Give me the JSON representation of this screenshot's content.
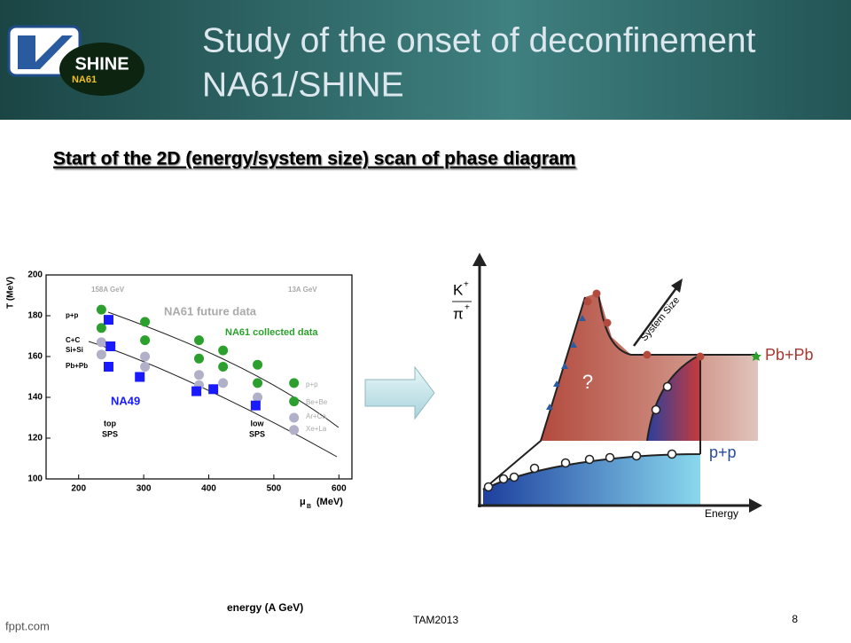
{
  "header": {
    "title_line1": "Study of the onset of deconfinement",
    "title_line2": "NA61/SHINE",
    "logo_text": "SHINE",
    "logo_subtext": "NA61"
  },
  "subtitle": "Start of the 2D (energy/system size) scan of phase diagram",
  "left_plot": {
    "y_label": "T (MeV)",
    "x_label_mu": "μ",
    "x_label_sub": "B",
    "x_label_unit": "(MeV)",
    "xlim": [
      150,
      620
    ],
    "ylim": [
      100,
      200
    ],
    "xticks": [
      200,
      300,
      400,
      500,
      600
    ],
    "yticks": [
      100,
      120,
      140,
      160,
      180,
      200
    ],
    "top_energy": "158A GeV",
    "low_energy": "13A GeV",
    "future_label": "NA61 future data",
    "collected_label": "NA61 collected data",
    "na49_label": "NA49",
    "top_sps": [
      "top",
      "SPS"
    ],
    "low_sps": [
      "low",
      "SPS"
    ],
    "system_labels": [
      "p+p",
      "C+C",
      "Si+Si",
      "Pb+Pb"
    ],
    "legend": [
      "p+p",
      "Be+Be",
      "Ar+Ca",
      "Xe+La"
    ],
    "na49": {
      "color": "#1a1aff",
      "x": [
        246,
        249,
        246,
        294,
        381,
        407,
        472
      ],
      "y": [
        178,
        165,
        155,
        150,
        143,
        144,
        136
      ]
    },
    "collected": {
      "color": "#2ca02c",
      "x": [
        235,
        235,
        302,
        302,
        385,
        422,
        475,
        385,
        422,
        475,
        531,
        531
      ],
      "y": [
        183,
        174,
        177,
        168,
        168,
        163,
        156,
        159,
        155,
        147,
        147,
        138
      ]
    },
    "future": {
      "color": "#b0b0c8",
      "x": [
        235,
        235,
        302,
        302,
        385,
        422,
        475,
        531,
        531,
        385
      ],
      "y": [
        167,
        161,
        160,
        155,
        151,
        147,
        140,
        130,
        124,
        146
      ]
    }
  },
  "right_plot": {
    "k": "K",
    "k_sup": "+",
    "pi": "π",
    "pi_sup": "+",
    "system_size": "System Size",
    "question": "?",
    "heavy": "Pb+Pb",
    "light": "p+p",
    "energy": "Energy"
  },
  "footer": {
    "energy_label": "energy (A GeV)",
    "conference": "TAM2013",
    "page": "8",
    "site": "fppt.com"
  }
}
